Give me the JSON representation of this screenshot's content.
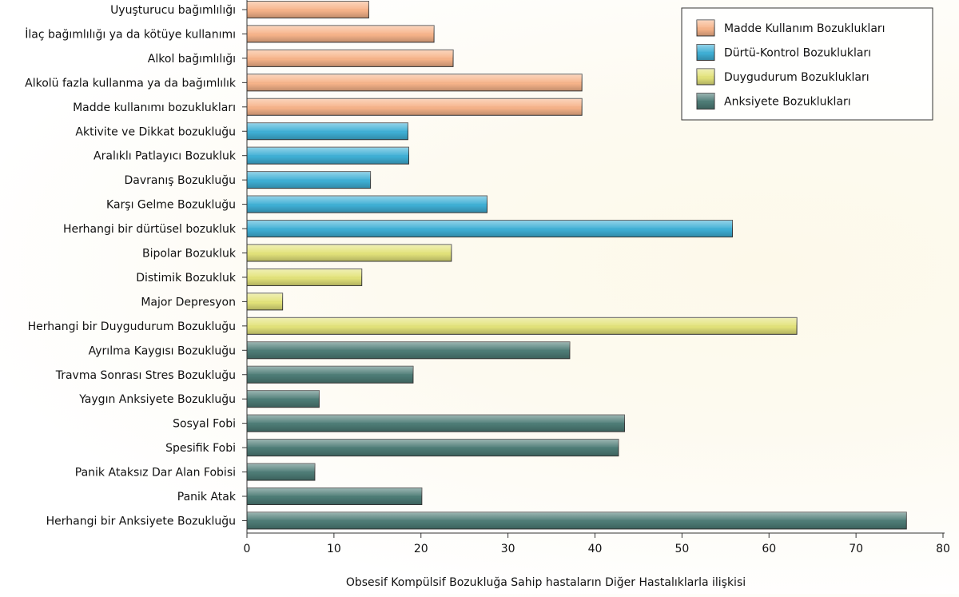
{
  "colors": {
    "Madde Kullanım Bozuklukları": "#f7b48a",
    "Dürtü-Kontrol Bozuklukları": "#3fb0d6",
    "Duygudurum Bozuklukları": "#e3e37a",
    "Anksiyete Bozuklukları": "#4d7c76"
  },
  "chart_data": {
    "type": "bar",
    "orientation": "horizontal",
    "title": "",
    "xlabel": "Obsesif Kompülsif Bozukluğa Sahip hastaların Diğer Hastalıklarla ilişkisi",
    "ylabel": "",
    "xlim": [
      0,
      80
    ],
    "xticks": [
      "0",
      "10",
      "20",
      "30",
      "40",
      "50",
      "60",
      "70",
      "80"
    ],
    "legend_position": "top-right",
    "legend": [
      "Madde Kullanım Bozuklukları",
      "Dürtü-Kontrol Bozuklukları",
      "Duygudurum Bozuklukları",
      "Anksiyete Bozuklukları"
    ],
    "bars": [
      {
        "label": "Uyuşturucu bağımlılığı",
        "value": 14,
        "group": "Madde Kullanım Bozuklukları"
      },
      {
        "label": "İlaç bağımlılığı ya da kötüye kullanımı",
        "value": 21.5,
        "group": "Madde Kullanım Bozuklukları"
      },
      {
        "label": "Alkol bağımlılığı",
        "value": 23.7,
        "group": "Madde Kullanım Bozuklukları"
      },
      {
        "label": "Alkolü fazla kullanma ya da bağımlılık",
        "value": 38.5,
        "group": "Madde Kullanım Bozuklukları"
      },
      {
        "label": "Madde kullanımı bozuklukları",
        "value": 38.5,
        "group": "Madde Kullanım Bozuklukları"
      },
      {
        "label": "Aktivite ve Dikkat bozukluğu",
        "value": 18.5,
        "group": "Dürtü-Kontrol Bozuklukları"
      },
      {
        "label": "Aralıklı Patlayıcı Bozukluk",
        "value": 18.6,
        "group": "Dürtü-Kontrol Bozuklukları"
      },
      {
        "label": "Davranış Bozukluğu",
        "value": 14.2,
        "group": "Dürtü-Kontrol Bozuklukları"
      },
      {
        "label": "Karşı Gelme Bozukluğu",
        "value": 27.6,
        "group": "Dürtü-Kontrol Bozuklukları"
      },
      {
        "label": "Herhangi bir dürtüsel bozukluk",
        "value": 55.8,
        "group": "Dürtü-Kontrol Bozuklukları"
      },
      {
        "label": "Bipolar Bozukluk",
        "value": 23.5,
        "group": "Duygudurum Bozuklukları"
      },
      {
        "label": "Distimik Bozukluk",
        "value": 13.2,
        "group": "Duygudurum Bozuklukları"
      },
      {
        "label": "Major Depresyon",
        "value": 4.1,
        "group": "Duygudurum Bozuklukları"
      },
      {
        "label": "Herhangi bir Duygudurum Bozukluğu",
        "value": 63.2,
        "group": "Duygudurum Bozuklukları"
      },
      {
        "label": "Ayrılma Kaygısı Bozukluğu",
        "value": 37.1,
        "group": "Anksiyete Bozuklukları"
      },
      {
        "label": "Travma Sonrası Stres Bozukluğu",
        "value": 19.1,
        "group": "Anksiyete Bozuklukları"
      },
      {
        "label": "Yaygın Anksiyete Bozukluğu",
        "value": 8.3,
        "group": "Anksiyete Bozuklukları"
      },
      {
        "label": "Sosyal Fobi",
        "value": 43.4,
        "group": "Anksiyete Bozuklukları"
      },
      {
        "label": "Spesifik Fobi",
        "value": 42.7,
        "group": "Anksiyete Bozuklukları"
      },
      {
        "label": "Panik Ataksız Dar Alan Fobisi",
        "value": 7.8,
        "group": "Anksiyete Bozuklukları"
      },
      {
        "label": "Panik Atak",
        "value": 20.1,
        "group": "Anksiyete Bozuklukları"
      },
      {
        "label": "Herhangi bir Anksiyete Bozukluğu",
        "value": 75.8,
        "group": "Anksiyete Bozuklukları"
      }
    ]
  }
}
